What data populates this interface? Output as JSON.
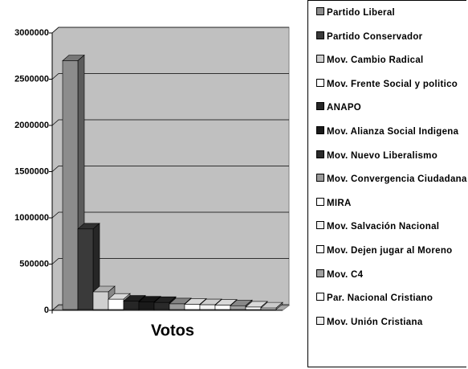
{
  "chart_data": {
    "type": "bar3d",
    "categories": [
      "Votos"
    ],
    "ylim": [
      0,
      3000000
    ],
    "yticks": [
      0,
      500000,
      1000000,
      1500000,
      2000000,
      2500000,
      3000000
    ],
    "grid": true,
    "series": [
      {
        "name": "Partido Liberal",
        "color": "#8c8c8c",
        "values": [
          2700000
        ]
      },
      {
        "name": "Partido Conservador",
        "color": "#3a3a3a",
        "values": [
          880000
        ]
      },
      {
        "name": "Mov. Cambio Radical",
        "color": "#cfcfcf",
        "values": [
          200000
        ]
      },
      {
        "name": "Mov. Frente Social y politico",
        "color": "#ffffff",
        "values": [
          120000
        ]
      },
      {
        "name": "ANAPO",
        "color": "#262626",
        "values": [
          100000
        ]
      },
      {
        "name": "Mov. Alianza Social Indigena",
        "color": "#1a1a1a",
        "values": [
          90000
        ]
      },
      {
        "name": "Mov. Nuevo Liberalismo",
        "color": "#2a2a2a",
        "values": [
          85000
        ]
      },
      {
        "name": "Mov. Convergencia Ciudadana",
        "color": "#9a9a9a",
        "values": [
          70000
        ]
      },
      {
        "name": "MIRA",
        "color": "#ffffff",
        "values": [
          65000
        ]
      },
      {
        "name": "Mov. Salvación Nacional",
        "color": "#f2f2f2",
        "values": [
          60000
        ]
      },
      {
        "name": "Mov. Dejen jugar al Moreno",
        "color": "#ffffff",
        "values": [
          55000
        ]
      },
      {
        "name": "Mov. C4",
        "color": "#a0a0a0",
        "values": [
          50000
        ]
      },
      {
        "name": "Par. Nacional Cristiano",
        "color": "#ffffff",
        "values": [
          35000
        ]
      },
      {
        "name": "Mov. Unión Cristiana",
        "color": "#eeeeee",
        "values": [
          25000
        ]
      }
    ]
  }
}
